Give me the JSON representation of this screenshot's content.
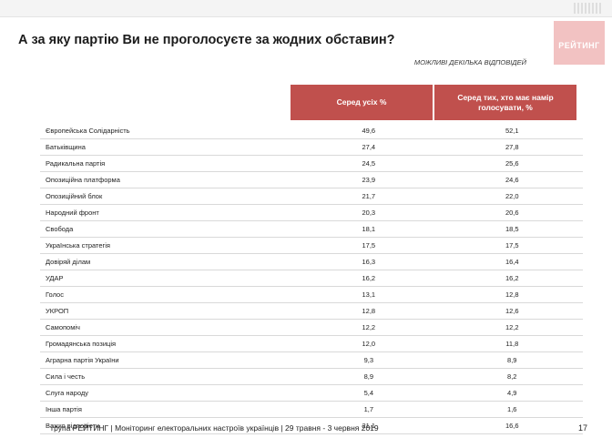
{
  "title": "А за яку партію Ви не проголосуєте за жодних обставин?",
  "logo_text": "РЕЙТИНГ",
  "note": "МОЖЛИВІ ДЕКІЛЬКА ВІДПОВІДЕЙ",
  "columns": [
    "Серед усіх %",
    "Серед тих, хто має намір голосувати, %"
  ],
  "rows": [
    {
      "name": "Європейська Солідарність",
      "all": "49,6",
      "voters": "52,1"
    },
    {
      "name": "Батьківщина",
      "all": "27,4",
      "voters": "27,8"
    },
    {
      "name": "Радикальна партія",
      "all": "24,5",
      "voters": "25,6"
    },
    {
      "name": "Опозиційна платформа",
      "all": "23,9",
      "voters": "24,6"
    },
    {
      "name": "Опозиційний блок",
      "all": "21,7",
      "voters": "22,0"
    },
    {
      "name": "Народний фронт",
      "all": "20,3",
      "voters": "20,6"
    },
    {
      "name": "Свобода",
      "all": "18,1",
      "voters": "18,5"
    },
    {
      "name": "Українська стратегія",
      "all": "17,5",
      "voters": "17,5"
    },
    {
      "name": "Довіряй ділам",
      "all": "16,3",
      "voters": "16,4"
    },
    {
      "name": "УДАР",
      "all": "16,2",
      "voters": "16,2"
    },
    {
      "name": "Голос",
      "all": "13,1",
      "voters": "12,8"
    },
    {
      "name": "УКРОП",
      "all": "12,8",
      "voters": "12,6"
    },
    {
      "name": "Самопоміч",
      "all": "12,2",
      "voters": "12,2"
    },
    {
      "name": "Громадянська позиція",
      "all": "12,0",
      "voters": "11,8"
    },
    {
      "name": "Аграрна партія України",
      "all": "9,3",
      "voters": "8,9"
    },
    {
      "name": "Сила і честь",
      "all": "8,9",
      "voters": "8,2"
    },
    {
      "name": "Слуга народу",
      "all": "5,4",
      "voters": "4,9"
    },
    {
      "name": "Інша партія",
      "all": "1,7",
      "voters": "1,6"
    },
    {
      "name": "Важко відповісти",
      "all": "21,1",
      "voters": "16,6"
    }
  ],
  "footer": "група РЕЙТИНГ | Моніторинг електоральних настроїв українців | 29 травня - 3 червня 2019",
  "page_number": "17",
  "colors": {
    "accent": "#c0504d",
    "logo": "#f2c2c2"
  }
}
